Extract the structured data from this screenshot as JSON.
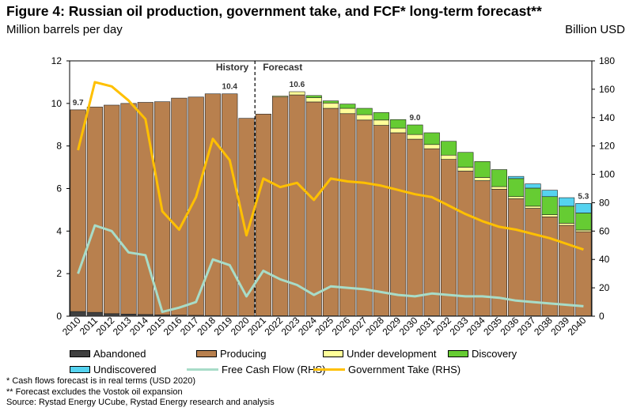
{
  "title": "Figure 4: Russian oil production, government take, and FCF* long-term forecast**",
  "left_unit": "Million barrels per day",
  "right_unit": "Billion USD",
  "history_label": "History",
  "forecast_label": "Forecast",
  "footnotes": [
    "* Cash flows forecast is in real terms (USD 2020)",
    "** Forecast excludes the Vostok oil expansion",
    "Source: Rystad Energy UCube, Rystad Energy research and analysis"
  ],
  "colors": {
    "abandoned": "#404040",
    "producing": "#b8804e",
    "under_development": "#ffff99",
    "discovery": "#66cc33",
    "undiscovered": "#55d3f0",
    "fcf": "#a8dcc8",
    "government_take": "#ffc000"
  },
  "chart_data": {
    "type": "bar",
    "stacked": true,
    "categories": [
      "2010",
      "2011",
      "2012",
      "2013",
      "2014",
      "2015",
      "2016",
      "2017",
      "2018",
      "2019",
      "2020",
      "2021",
      "2022",
      "2023",
      "2024",
      "2025",
      "2026",
      "2027",
      "2028",
      "2029",
      "2030",
      "2031",
      "2032",
      "2033",
      "2034",
      "2035",
      "2036",
      "2037",
      "2038",
      "2039",
      "2040"
    ],
    "ylim": [
      0,
      12
    ],
    "y_ticks": [
      "0",
      "2",
      "4",
      "6",
      "8",
      "10",
      "12"
    ],
    "y2lim": [
      0,
      180
    ],
    "y2_ticks": [
      "0",
      "20",
      "40",
      "60",
      "80",
      "100",
      "120",
      "140",
      "160",
      "180"
    ],
    "series": [
      {
        "name": "Abandoned",
        "key": "abandoned",
        "values": [
          0.22,
          0.18,
          0.12,
          0.1,
          0.08,
          0.06,
          0.05,
          0.04,
          0.03,
          0.02,
          0.02,
          0.02,
          0.02,
          0.02,
          0.02,
          0.02,
          0.02,
          0.02,
          0.02,
          0.02,
          0.02,
          0.02,
          0.02,
          0.02,
          0.02,
          0.02,
          0.02,
          0.02,
          0.02,
          0.02,
          0.02
        ]
      },
      {
        "name": "Producing",
        "key": "producing",
        "values": [
          9.48,
          9.65,
          9.8,
          9.9,
          9.97,
          10.02,
          10.2,
          10.26,
          10.42,
          10.43,
          9.28,
          9.48,
          10.28,
          10.38,
          10.05,
          9.75,
          9.5,
          9.2,
          8.95,
          8.6,
          8.3,
          7.85,
          7.35,
          6.8,
          6.35,
          5.95,
          5.5,
          5.05,
          4.65,
          4.25,
          3.95
        ]
      },
      {
        "name": "Under development",
        "key": "under_development",
        "values": [
          0,
          0,
          0,
          0,
          0,
          0,
          0,
          0,
          0,
          0,
          0,
          0,
          0.05,
          0.15,
          0.2,
          0.25,
          0.25,
          0.25,
          0.25,
          0.22,
          0.22,
          0.2,
          0.2,
          0.18,
          0.15,
          0.12,
          0.1,
          0.1,
          0.1,
          0.1,
          0.08
        ]
      },
      {
        "name": "Discovery",
        "key": "discovery",
        "values": [
          0,
          0,
          0,
          0,
          0,
          0,
          0,
          0,
          0,
          0,
          0,
          0,
          0,
          0,
          0.1,
          0.1,
          0.2,
          0.3,
          0.35,
          0.4,
          0.45,
          0.55,
          0.65,
          0.7,
          0.75,
          0.8,
          0.85,
          0.85,
          0.85,
          0.8,
          0.8
        ]
      },
      {
        "name": "Undiscovered",
        "key": "undiscovered",
        "values": [
          0,
          0,
          0,
          0,
          0,
          0,
          0,
          0,
          0,
          0,
          0,
          0,
          0,
          0,
          0,
          0,
          0,
          0,
          0,
          0,
          0,
          0,
          0,
          0,
          0,
          0,
          0.1,
          0.2,
          0.3,
          0.4,
          0.45
        ]
      }
    ],
    "lines": [
      {
        "name": "Free Cash Flow (RHS)",
        "key": "fcf",
        "axis": "right",
        "values": [
          30,
          64,
          60,
          45,
          43,
          3,
          6,
          10,
          40,
          36,
          14,
          32,
          26,
          22,
          15,
          21,
          20,
          19,
          17,
          15,
          14,
          16,
          15,
          14,
          14,
          13,
          11,
          10,
          9,
          8,
          7
        ]
      },
      {
        "name": "Government Take (RHS)",
        "key": "government_take",
        "axis": "right",
        "values": [
          117,
          165,
          162,
          152,
          139,
          74,
          61,
          84,
          125,
          110,
          57,
          97,
          91,
          94,
          82,
          97,
          95,
          94,
          92,
          89,
          86,
          84,
          78,
          72,
          67,
          63,
          61,
          58,
          55,
          51,
          47
        ]
      }
    ],
    "data_labels": [
      {
        "category": "2010",
        "text": "9.7"
      },
      {
        "category": "2019",
        "text": "10.4"
      },
      {
        "category": "2023",
        "text": "10.6"
      },
      {
        "category": "2030",
        "text": "9.0"
      },
      {
        "category": "2040",
        "text": "5.3"
      }
    ],
    "divider_after": "2020",
    "legend": [
      {
        "label": "Abandoned",
        "key": "abandoned",
        "kind": "box"
      },
      {
        "label": "Producing",
        "key": "producing",
        "kind": "box"
      },
      {
        "label": "Under development",
        "key": "under_development",
        "kind": "box"
      },
      {
        "label": "Discovery",
        "key": "discovery",
        "kind": "box"
      },
      {
        "label": "Undiscovered",
        "key": "undiscovered",
        "kind": "box"
      },
      {
        "label": "Free Cash Flow (RHS)",
        "key": "fcf",
        "kind": "line"
      },
      {
        "label": "Government Take (RHS)",
        "key": "government_take",
        "kind": "line"
      }
    ]
  }
}
